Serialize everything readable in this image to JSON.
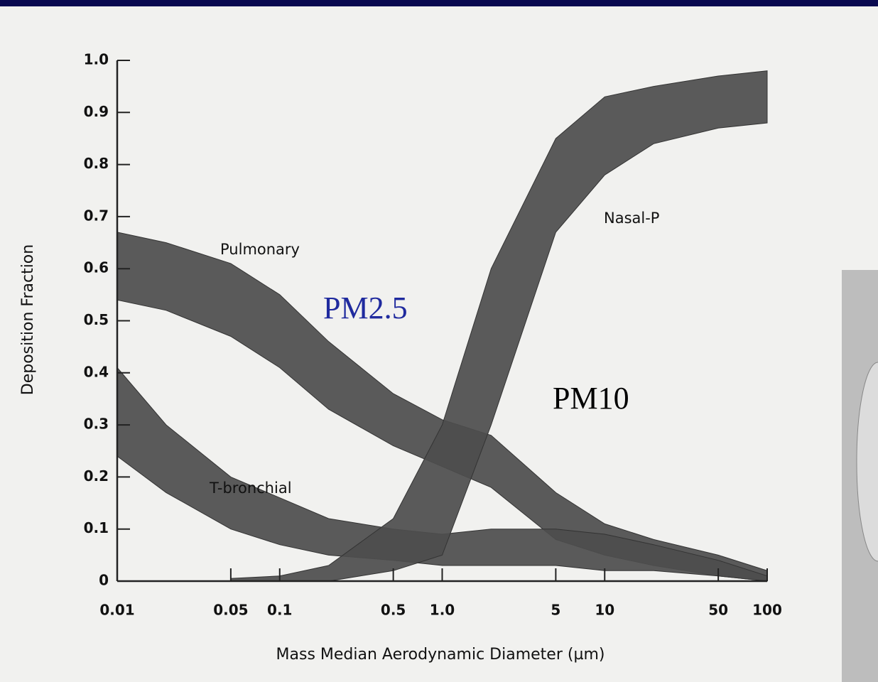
{
  "chart_data": {
    "type": "band",
    "xlabel": "Mass Median Aerodynamic Diameter (µm)",
    "ylabel": "Deposition Fraction",
    "x": [
      0.01,
      0.02,
      0.05,
      0.1,
      0.2,
      0.5,
      1,
      2,
      5,
      10,
      20,
      50,
      100
    ],
    "xscale": "log",
    "xlim": [
      0.01,
      100
    ],
    "ylim": [
      0,
      1
    ],
    "xticks": [
      0.01,
      0.05,
      0.1,
      0.5,
      {
        "value": 1,
        "label": "1.0"
      },
      5,
      10,
      50,
      100
    ],
    "yticks": [
      0,
      0.1,
      0.2,
      0.3,
      0.4,
      0.5,
      0.6,
      0.7,
      0.8,
      0.9,
      {
        "value": 1,
        "label": "1.0"
      }
    ],
    "series": [
      {
        "name": "Pulmonary",
        "color": "#4d4d4d",
        "lower": [
          0.54,
          0.52,
          0.47,
          0.41,
          0.33,
          0.26,
          0.22,
          0.18,
          0.08,
          0.05,
          0.03,
          0.01,
          0
        ],
        "upper": [
          0.67,
          0.65,
          0.61,
          0.55,
          0.46,
          0.36,
          0.31,
          0.28,
          0.17,
          0.11,
          0.08,
          0.05,
          0.02
        ]
      },
      {
        "name": "T-bronchial",
        "color": "#4d4d4d",
        "lower": [
          0.24,
          0.17,
          0.1,
          0.07,
          0.05,
          0.04,
          0.03,
          0.03,
          0.03,
          0.02,
          0.02,
          0.01,
          0
        ],
        "upper": [
          0.41,
          0.3,
          0.2,
          0.16,
          0.12,
          0.1,
          0.09,
          0.1,
          0.1,
          0.09,
          0.07,
          0.04,
          0.01
        ]
      },
      {
        "name": "Nasal-P",
        "color": "#4d4d4d",
        "lower": [
          null,
          null,
          0,
          0,
          0,
          0.02,
          0.05,
          0.3,
          0.67,
          0.78,
          0.84,
          0.87,
          0.88
        ],
        "upper": [
          null,
          null,
          0.005,
          0.01,
          0.03,
          0.12,
          0.3,
          0.6,
          0.85,
          0.93,
          0.95,
          0.97,
          0.98
        ]
      }
    ],
    "annotations": [
      {
        "text": "PM2.5",
        "color": "#1f2a9e"
      },
      {
        "text": "PM10",
        "color": "#000000"
      }
    ]
  }
}
